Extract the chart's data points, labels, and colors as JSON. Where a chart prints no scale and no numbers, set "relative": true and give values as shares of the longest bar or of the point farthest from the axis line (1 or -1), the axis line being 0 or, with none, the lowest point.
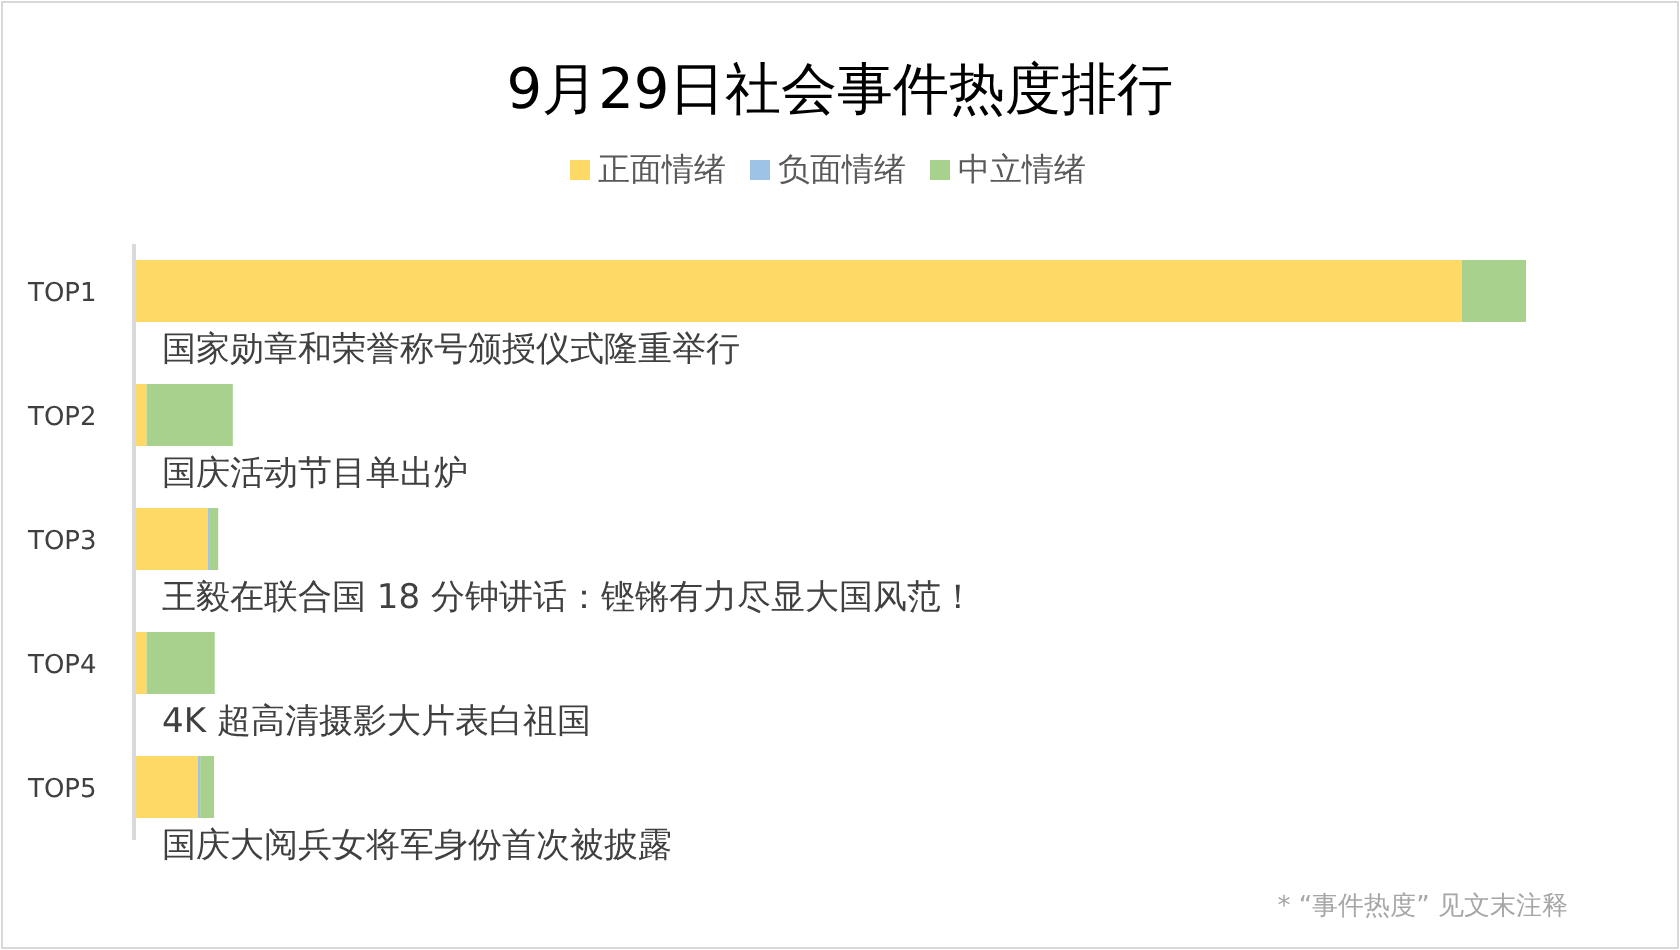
{
  "chart_data": {
    "type": "bar",
    "title": "9月29日社会事件热度排行",
    "orientation": "horizontal",
    "stacked": true,
    "relative": true,
    "legend": "top",
    "categories": [
      "TOP1",
      "TOP2",
      "TOP3",
      "TOP4",
      "TOP5"
    ],
    "series": [
      {
        "name": "正面情绪",
        "color": "#ffd966",
        "values": [
          0.954,
          0.009,
          0.053,
          0.009,
          0.046
        ]
      },
      {
        "name": "负面情绪",
        "color": "#9dc3e6",
        "values": [
          0,
          0,
          0.0015,
          0,
          0.0015
        ]
      },
      {
        "name": "中立情绪",
        "color": "#a9d18e",
        "values": [
          0.046,
          0.062,
          0.006,
          0.049,
          0.01
        ]
      }
    ],
    "annotations": [
      "国家勋章和荣誉称号颁授仪式隆重举行",
      "国庆活动节目单出炉",
      "王毅在联合国 18 分钟讲话：铿锵有力尽显大国风范！",
      "4K 超高清摄影大片表白祖国",
      "国庆大阅兵女将军身份首次被披露",
      "* “事件热度” 见文末注释"
    ]
  }
}
